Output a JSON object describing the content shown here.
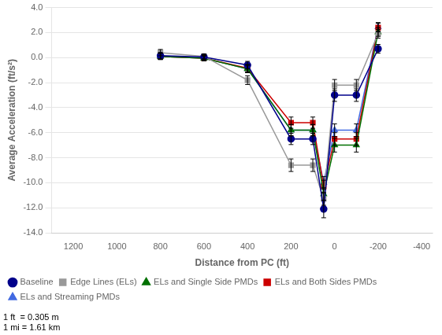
{
  "chart_data": {
    "type": "line",
    "xlabel": "Distance from PC (ft)",
    "ylabel": "Average Acceleration (ft/s²)",
    "footnote": "1 ft  = 0.305 m\n1 mi = 1.61 km",
    "xlim": [
      1300,
      -450
    ],
    "ylim": [
      -14.0,
      4.0
    ],
    "xticks": [
      1200,
      1000,
      800,
      600,
      400,
      200,
      0,
      -200,
      -400
    ],
    "yticks": [
      {
        "value": -14.0,
        "label": "-14.0"
      },
      {
        "value": -12.0,
        "label": "-12.0"
      },
      {
        "value": -10.0,
        "label": "-10.0"
      },
      {
        "value": -8.0,
        "label": "-8.0"
      },
      {
        "value": -6.0,
        "label": "-6.0"
      },
      {
        "value": -4.0,
        "label": "-4.0"
      },
      {
        "value": -2.0,
        "label": "-2.0"
      },
      {
        "value": 0.0,
        "label": "0.0"
      },
      {
        "value": 2.0,
        "label": "2.0"
      },
      {
        "value": 4.0,
        "label": "4.0"
      }
    ],
    "grid": "y",
    "legend": "lower left",
    "series": [
      {
        "name": "Baseline",
        "color": "#00008B",
        "marker": "circle",
        "x": [
          800,
          600,
          400,
          200,
          100,
          50,
          0,
          -100,
          -200
        ],
        "values": [
          0.15,
          0.05,
          -0.6,
          -6.5,
          -6.5,
          -12.1,
          -3.0,
          -3.0,
          0.7
        ],
        "yerr": [
          0.25,
          0.2,
          0.3,
          0.45,
          0.45,
          0.7,
          0.5,
          0.5,
          0.35
        ]
      },
      {
        "name": "Edge Lines (ELs)",
        "color": "#999999",
        "marker": "square",
        "x": [
          800,
          600,
          400,
          200,
          100,
          50,
          0,
          -100,
          -200
        ],
        "values": [
          0.4,
          0.1,
          -1.8,
          -8.6,
          -8.6,
          -11.3,
          -2.2,
          -2.2,
          1.9
        ],
        "yerr": [
          0.25,
          0.2,
          0.35,
          0.5,
          0.5,
          0.5,
          0.45,
          0.45,
          0.35
        ]
      },
      {
        "name": "ELs and Single Side PMDs",
        "color": "#007000",
        "marker": "triangle",
        "x": [
          800,
          600,
          400,
          200,
          100,
          50,
          0,
          -100,
          -200
        ],
        "values": [
          0.1,
          -0.05,
          -0.9,
          -5.8,
          -5.8,
          -10.9,
          -7.0,
          -7.0,
          2.05
        ],
        "yerr": [
          0.25,
          0.2,
          0.3,
          0.45,
          0.45,
          0.5,
          0.55,
          0.55,
          0.35
        ]
      },
      {
        "name": "ELs and Both Sides PMDs",
        "color": "#CC0000",
        "marker": "square",
        "x": [
          800,
          600,
          400,
          200,
          100,
          50,
          0,
          -100,
          -200
        ],
        "values": [
          0.1,
          -0.05,
          -0.85,
          -5.2,
          -5.2,
          -10.3,
          -6.5,
          -6.5,
          2.4
        ],
        "yerr": [
          0.25,
          0.2,
          0.3,
          0.45,
          0.45,
          0.5,
          0.5,
          0.5,
          0.35
        ]
      },
      {
        "name": "ELs and Streaming PMDs",
        "color": "#4169E1",
        "marker": "triangle",
        "x": [
          800,
          600,
          400,
          200,
          100,
          50,
          0,
          -100,
          -200
        ],
        "values": [
          0.1,
          -0.05,
          -0.9,
          -5.8,
          -5.8,
          -10.0,
          -5.8,
          -5.8,
          2.45
        ],
        "yerr": [
          0.25,
          0.2,
          0.3,
          0.45,
          0.45,
          0.5,
          0.5,
          0.5,
          0.35
        ]
      }
    ]
  }
}
